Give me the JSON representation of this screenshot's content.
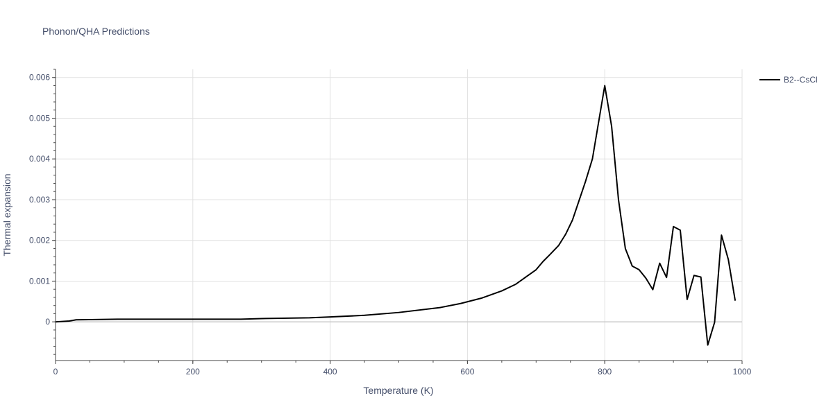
{
  "chart_data": {
    "type": "line",
    "title": "Phonon/QHA Predictions",
    "xlabel": "Temperature (K)",
    "ylabel": "Thermal expansion",
    "xlim": [
      0,
      1000
    ],
    "ylim": [
      -0.00095,
      0.0062
    ],
    "x_ticks": [
      0,
      200,
      400,
      600,
      800,
      1000
    ],
    "x_tick_labels": [
      "0",
      "200",
      "400",
      "600",
      "800",
      "1000"
    ],
    "y_ticks": [
      0,
      0.001,
      0.002,
      0.003,
      0.004,
      0.005,
      0.006
    ],
    "y_tick_labels": [
      "0",
      "0.001",
      "0.002",
      "0.003",
      "0.004",
      "0.005",
      "0.006"
    ],
    "grid": true,
    "legend_position": "top-right",
    "series": [
      {
        "name": "B2--CsCl",
        "color": "#000000",
        "x": [
          0,
          10,
          20,
          30,
          50,
          90,
          150,
          200,
          270,
          300,
          370,
          400,
          450,
          500,
          560,
          590,
          620,
          650,
          670,
          700,
          710,
          720,
          733,
          743,
          753,
          762,
          772,
          782,
          792,
          800,
          810,
          820,
          830,
          840,
          850,
          860,
          870,
          880,
          890,
          900,
          910,
          920,
          930,
          940,
          950,
          960,
          970,
          980,
          990
        ],
        "y": [
          0,
          1e-05,
          2e-05,
          5e-05,
          5.5e-05,
          6.5e-05,
          6.5e-05,
          6.5e-05,
          6.5e-05,
          8e-05,
          0.0001,
          0.00012,
          0.00016,
          0.00023,
          0.00035,
          0.00045,
          0.00058,
          0.00076,
          0.00092,
          0.00128,
          0.00148,
          0.00165,
          0.00188,
          0.00215,
          0.0025,
          0.00295,
          0.00345,
          0.004,
          0.005,
          0.0058,
          0.0048,
          0.003,
          0.0018,
          0.00137,
          0.00128,
          0.00107,
          0.00079,
          0.00144,
          0.00109,
          0.00234,
          0.00225,
          0.00055,
          0.00114,
          0.0011,
          -0.00057,
          -1e-05,
          0.00213,
          0.00153,
          0.00052
        ]
      }
    ]
  }
}
